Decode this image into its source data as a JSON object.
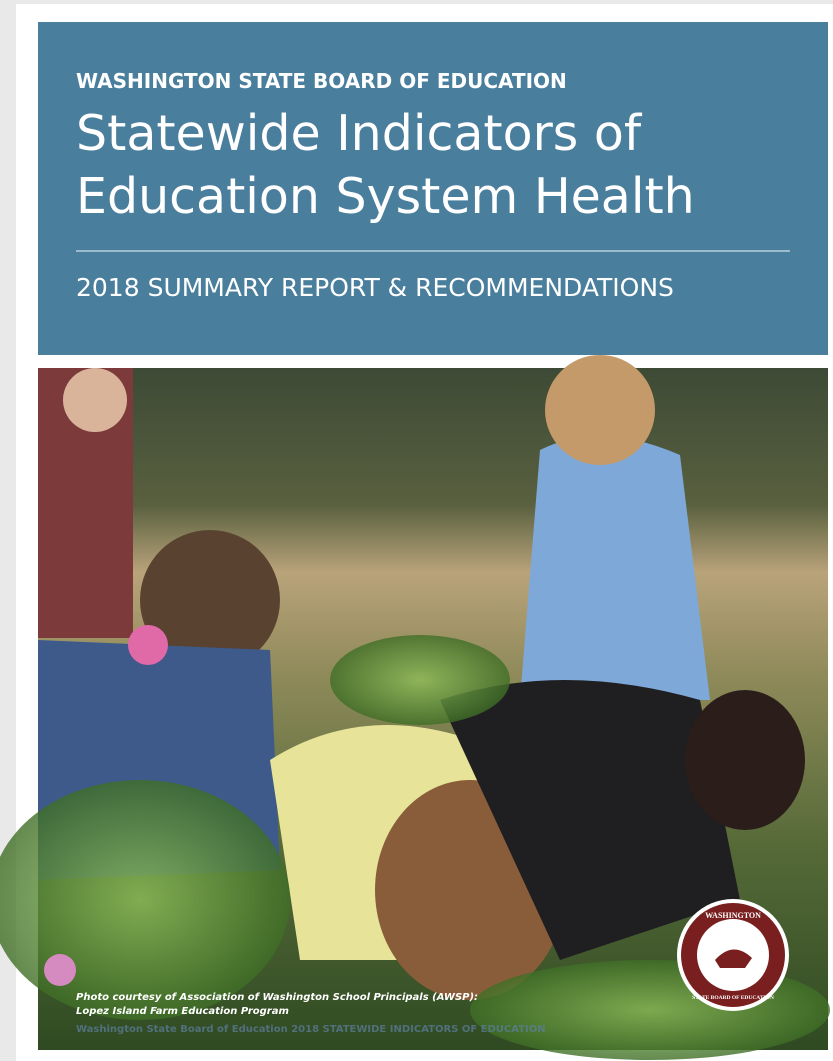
{
  "header": {
    "organization": "WASHINGTON STATE BOARD OF EDUCATION",
    "title_lines": [
      "Statewide Indicators of",
      "Education System Health"
    ],
    "subtitle": "2018 SUMMARY REPORT & RECOMMENDATIONS"
  },
  "photo": {
    "credit_lines": [
      "Photo courtesy of Association of Washington School Principals (AWSP):",
      "Lopez Island Farm Education Program"
    ],
    "footer": "Washington State Board of Education 2018 STATEWIDE INDICATORS OF EDUCATION"
  },
  "seal": {
    "top": "WASHINGTON",
    "bottom": "STATE BOARD OF EDUCATION"
  }
}
